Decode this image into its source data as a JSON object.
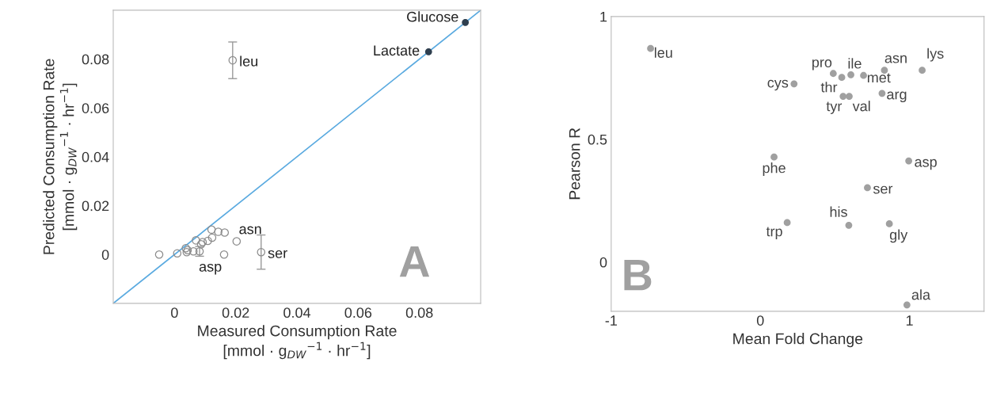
{
  "chart_data": [
    {
      "type": "scatter",
      "xlabel": "Measured Consumption Rate\n[mmol · g$_{DW}$$^{−1}$ · hr$^{−1}$]",
      "ylabel": "Predicted Consumption Rate\n[mmol · g$_{DW}$$^{−1}$ · hr$^{−1}$]",
      "xlim": [
        -0.02,
        0.1
      ],
      "ylim": [
        -0.02,
        0.1
      ],
      "xticks": [
        0,
        0.02,
        0.04,
        0.06,
        0.08
      ],
      "yticks": [
        0,
        0.02,
        0.04,
        0.06,
        0.08
      ],
      "grid": false,
      "series": [
        {
          "type": "line",
          "color": "#5aaae0",
          "x": [
            -0.02,
            0.1
          ],
          "values": [
            -0.02,
            0.1
          ],
          "marker": "none"
        },
        {
          "type": "scatter",
          "color": "#8c8c8c",
          "marker": "circle",
          "x": [
            0.019,
            0.0283,
            0.0162,
            0.0203,
            -0.005,
            0.0009,
            0.0037,
            0.0043,
            0.004,
            0.0062,
            0.007,
            0.0082,
            0.0087,
            0.0092,
            0.0109,
            0.0123,
            0.0121,
            0.0143,
            0.0164
          ],
          "values": [
            0.0795,
            0.001,
            0.0,
            0.0054,
            0.0,
            0.0005,
            0.0026,
            0.0018,
            0.001,
            0.0013,
            0.0058,
            0.0013,
            0.0042,
            0.0051,
            0.0056,
            0.0069,
            0.0102,
            0.0093,
            0.009
          ],
          "errors": [
            0.0075,
            0.007,
            null,
            null,
            null,
            null,
            null,
            null,
            null,
            null,
            null,
            0.002,
            null,
            null,
            null,
            null,
            null,
            null,
            null
          ]
        },
        {
          "type": "scatter",
          "color": "#2f3f4f",
          "marker": "circle",
          "x": [
            0.095,
            0.083
          ],
          "values": [
            0.095,
            0.083
          ]
        }
      ],
      "annotations": [
        {
          "text": "Glucose",
          "x": 0.095,
          "y": 0.095
        },
        {
          "text": "Lactate",
          "x": 0.083,
          "y": 0.083
        },
        {
          "text": "leu",
          "x": 0.019,
          "y": 0.0795
        },
        {
          "text": "asn",
          "x": 0.0203,
          "y": 0.0054
        },
        {
          "text": "ser",
          "x": 0.0283,
          "y": 0.001
        },
        {
          "text": "asp",
          "x": 0.0162,
          "y": 0.0
        },
        "A"
      ]
    },
    {
      "type": "scatter",
      "xlabel": "Mean Fold Change",
      "ylabel": "Pearson R",
      "xlim": [
        -1,
        1.5
      ],
      "ylim": [
        -0.2,
        1
      ],
      "xticks": [
        -1,
        0,
        1
      ],
      "yticks": [
        0,
        0.5,
        1
      ],
      "grid": false,
      "series": [
        {
          "type": "scatter",
          "color": "#a0a0a0",
          "marker": "circle",
          "x": [
            -0.736,
            0.489,
            0.546,
            0.607,
            0.692,
            0.832,
            1.085,
            0.226,
            0.555,
            0.596,
            0.816,
            0.092,
            0.995,
            0.718,
            0.593,
            0.18,
            0.865,
            0.983
          ],
          "values": [
            0.87,
            0.768,
            0.752,
            0.763,
            0.76,
            0.781,
            0.781,
            0.726,
            0.675,
            0.675,
            0.687,
            0.428,
            0.412,
            0.303,
            0.15,
            0.161,
            0.156,
            -0.174
          ]
        }
      ],
      "annotations": [
        {
          "text": "leu",
          "x": -0.736,
          "y": 0.87
        },
        {
          "text": "pro",
          "x": 0.489,
          "y": 0.768
        },
        {
          "text": "thr",
          "x": 0.546,
          "y": 0.752
        },
        {
          "text": "ile",
          "x": 0.607,
          "y": 0.763
        },
        {
          "text": "met",
          "x": 0.692,
          "y": 0.76
        },
        {
          "text": "asn",
          "x": 0.832,
          "y": 0.781
        },
        {
          "text": "lys",
          "x": 1.085,
          "y": 0.781
        },
        {
          "text": "cys",
          "x": 0.226,
          "y": 0.726
        },
        {
          "text": "tyr",
          "x": 0.555,
          "y": 0.675
        },
        {
          "text": "val",
          "x": 0.596,
          "y": 0.675
        },
        {
          "text": "arg",
          "x": 0.816,
          "y": 0.687
        },
        {
          "text": "phe",
          "x": 0.092,
          "y": 0.428
        },
        {
          "text": "asp",
          "x": 0.995,
          "y": 0.412
        },
        {
          "text": "ser",
          "x": 0.718,
          "y": 0.303
        },
        {
          "text": "his",
          "x": 0.593,
          "y": 0.15
        },
        {
          "text": "trp",
          "x": 0.18,
          "y": 0.161
        },
        {
          "text": "gly",
          "x": 0.865,
          "y": 0.156
        },
        {
          "text": "ala",
          "x": 0.983,
          "y": -0.174
        },
        "B"
      ]
    }
  ]
}
